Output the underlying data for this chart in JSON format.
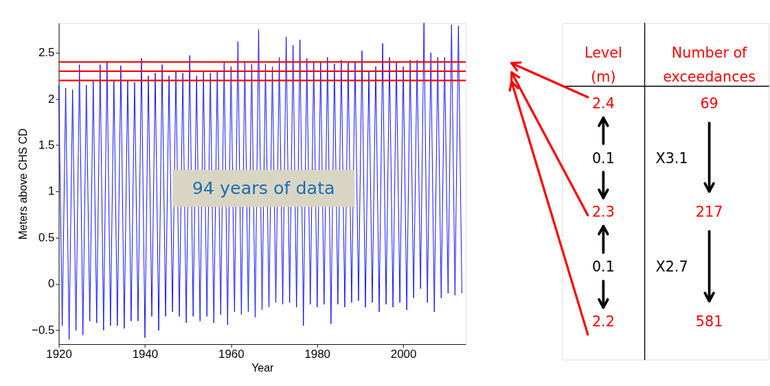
{
  "chart_data": [
    {
      "type": "line",
      "xlabel": "Year",
      "ylabel": "Meters above CHS CD",
      "xlim": [
        1920,
        2014.5
      ],
      "ylim": [
        -0.65,
        2.82
      ],
      "xticks": [
        1920,
        1940,
        1960,
        1980,
        2000
      ],
      "yticks": [
        -0.5,
        0,
        0.5,
        1,
        1.5,
        2,
        2.5
      ],
      "grid": false,
      "series": [
        {
          "color": "#0000ff",
          "x": [
            1920,
            1920.8,
            1921.6,
            1922.4,
            1923.2,
            1924,
            1924.8,
            1925.6,
            1926.4,
            1927.2,
            1928,
            1928.8,
            1929.6,
            1930.4,
            1931.2,
            1932,
            1932.8,
            1933.6,
            1934.4,
            1935.2,
            1936,
            1936.8,
            1937.6,
            1938.4,
            1939.2,
            1940,
            1940.8,
            1941.6,
            1942.4,
            1943.2,
            1944,
            1944.8,
            1945.6,
            1946.4,
            1947.2,
            1948,
            1948.8,
            1949.6,
            1950.4,
            1951.2,
            1952,
            1952.8,
            1953.6,
            1954.4,
            1955.2,
            1956,
            1956.8,
            1957.6,
            1958.4,
            1959.2,
            1960,
            1960.8,
            1961.6,
            1962.4,
            1963.2,
            1964,
            1964.8,
            1965.6,
            1966.4,
            1967.2,
            1968,
            1968.8,
            1969.6,
            1970.4,
            1971.2,
            1972,
            1972.8,
            1973.6,
            1974.4,
            1975.2,
            1976,
            1976.8,
            1977.6,
            1978.4,
            1979.2,
            1980,
            1980.8,
            1981.6,
            1982.4,
            1983.2,
            1984,
            1984.8,
            1985.6,
            1986.4,
            1987.2,
            1988,
            1988.8,
            1989.6,
            1990.4,
            1991.2,
            1992,
            1992.8,
            1993.6,
            1994.4,
            1995.2,
            1996,
            1996.8,
            1997.6,
            1998.4,
            1999.2,
            2000,
            2000.8,
            2001.6,
            2002.4,
            2003.2,
            2004,
            2004.8,
            2005.6,
            2006.4,
            2007.2,
            2008,
            2008.8,
            2009.6,
            2010.4,
            2011.2,
            2012,
            2012.8,
            2013.6
          ],
          "values": [
            2.15,
            -0.45,
            2.12,
            -0.6,
            2.1,
            -0.5,
            2.37,
            -0.55,
            2.15,
            -0.4,
            2.2,
            -0.42,
            2.37,
            -0.5,
            2.4,
            -0.45,
            2.2,
            -0.45,
            2.36,
            -0.48,
            2.2,
            -0.4,
            2.18,
            -0.4,
            2.44,
            -0.58,
            2.25,
            -0.35,
            2.28,
            -0.5,
            2.37,
            -0.35,
            2.25,
            -0.3,
            2.3,
            -0.35,
            2.28,
            -0.42,
            2.47,
            -0.35,
            2.25,
            -0.4,
            2.3,
            -0.35,
            2.28,
            -0.42,
            2.3,
            -0.33,
            2.4,
            -0.44,
            2.35,
            -0.3,
            2.62,
            -0.33,
            2.4,
            -0.3,
            2.38,
            -0.36,
            2.75,
            -0.28,
            2.38,
            -0.25,
            2.35,
            -0.2,
            2.45,
            -0.22,
            2.67,
            -0.2,
            2.58,
            -0.25,
            2.64,
            -0.45,
            2.44,
            -0.22,
            2.4,
            -0.25,
            2.4,
            -0.22,
            2.45,
            -0.43,
            2.38,
            -0.22,
            2.42,
            -0.25,
            2.4,
            -0.2,
            2.4,
            -0.18,
            2.52,
            -0.25,
            2.3,
            -0.2,
            2.35,
            -0.3,
            2.6,
            -0.22,
            2.45,
            -0.25,
            2.4,
            -0.2,
            2.35,
            -0.28,
            2.42,
            -0.15,
            2.42,
            -0.05,
            2.82,
            -0.2,
            2.5,
            -0.3,
            2.45,
            -0.15,
            2.45,
            -0.1,
            2.8,
            -0.12,
            2.79,
            -0.1
          ]
        }
      ],
      "ref_lines": [
        {
          "axis": "y",
          "value": 2.4,
          "color": "#ff0000"
        },
        {
          "axis": "y",
          "value": 2.3,
          "color": "#ff0000"
        },
        {
          "axis": "y",
          "value": 2.2,
          "color": "#ff0000"
        }
      ],
      "annotations": [
        "94 years of data"
      ]
    },
    {
      "type": "other",
      "annotations": [
        "Level\n(m)",
        "Number of\nexceedances",
        "2.4",
        "69",
        "0.1",
        "X3.1",
        "2.3",
        "217",
        "0.1",
        "X2.7",
        "2.2",
        "581"
      ],
      "colors": [
        "#ff0000",
        "#ff0000",
        "#ff0000",
        "#ff0000",
        "#000000",
        "#000000",
        "#ff0000",
        "#ff0000",
        "#000000",
        "#000000",
        "#ff0000",
        "#ff0000"
      ]
    }
  ]
}
